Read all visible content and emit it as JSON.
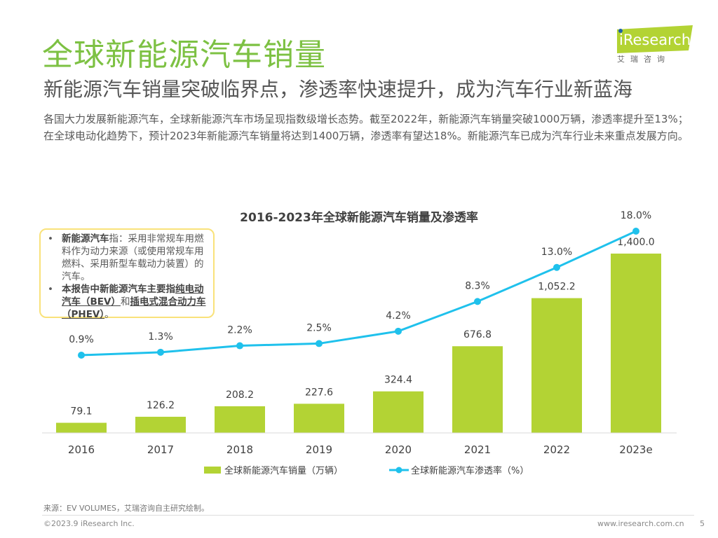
{
  "header": {
    "title": "全球新能源汽车销量",
    "subtitle": "新能源汽车销量突破临界点，渗透率快速提升，成为汽车行业新蓝海",
    "body": "各国大力发展新能源汽车，全球新能源汽车市场呈现指数级增长态势。截至2022年，新能源汽车销量突破1000万辆，渗透率提升至13%；在全球电动化趋势下，预计2023年新能源汽车销量将达到1400万辆，渗透率有望达18%。新能源汽车已成为汽车行业未来重点发展方向。"
  },
  "logo": {
    "text": "iResearch",
    "sub": "艾瑞咨询"
  },
  "note": {
    "item1_bold": "新能源汽车",
    "item1_rest": "指：采用非常规车用燃料作为动力来源（或使用常规车用燃料、采用新型车载动力装置）的汽车。",
    "item2_bold": "本报告中新能源汽车主要指",
    "item2_u1": "纯电动汽车（BEV）",
    "item2_mid": "和",
    "item2_u2": "插电式混合动力车（PHEV）",
    "item2_end": "。"
  },
  "chart_data": {
    "type": "bar+line",
    "title": "2016-2023年全球新能源汽车销量及渗透率",
    "categories": [
      "2016",
      "2017",
      "2018",
      "2019",
      "2020",
      "2021",
      "2022",
      "2023e"
    ],
    "series": [
      {
        "name": "全球新能源汽车销量（万辆）",
        "type": "bar",
        "color": "#b3d334",
        "values": [
          79.1,
          126.2,
          208.2,
          227.6,
          324.4,
          676.8,
          1052.2,
          1400.0
        ],
        "labels": [
          "79.1",
          "126.2",
          "208.2",
          "227.6",
          "324.4",
          "676.8",
          "1,052.2",
          "1,400.0"
        ]
      },
      {
        "name": "全球新能源汽车渗透率（%）",
        "type": "line",
        "color": "#1fc1ec",
        "values": [
          0.9,
          1.3,
          2.2,
          2.5,
          4.2,
          8.3,
          13.0,
          18.0
        ],
        "labels": [
          "0.9%",
          "1.3%",
          "2.2%",
          "2.5%",
          "4.2%",
          "8.3%",
          "13.0%",
          "18.0%"
        ]
      }
    ],
    "legend": "bottom",
    "grid": false
  },
  "footer": {
    "source": "来源：EV VOLUMES，艾瑞咨询自主研究绘制。",
    "copyright": "©2023.9 iResearch Inc.",
    "site": "www.iresearch.com.cn",
    "page": "5"
  }
}
